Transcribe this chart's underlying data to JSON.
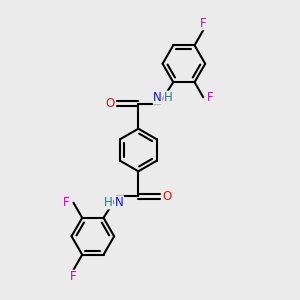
{
  "bg_color": "#ebebeb",
  "bond_color": "#000000",
  "bond_width": 1.5,
  "atom_colors": {
    "C": "#000000",
    "N": "#1414e6",
    "O": "#e61414",
    "F": "#cc00cc",
    "H": "#148080"
  },
  "font_size": 8.5,
  "ring_r": 0.55,
  "xlim": [
    -1.8,
    2.4
  ],
  "ylim": [
    -3.8,
    3.8
  ]
}
